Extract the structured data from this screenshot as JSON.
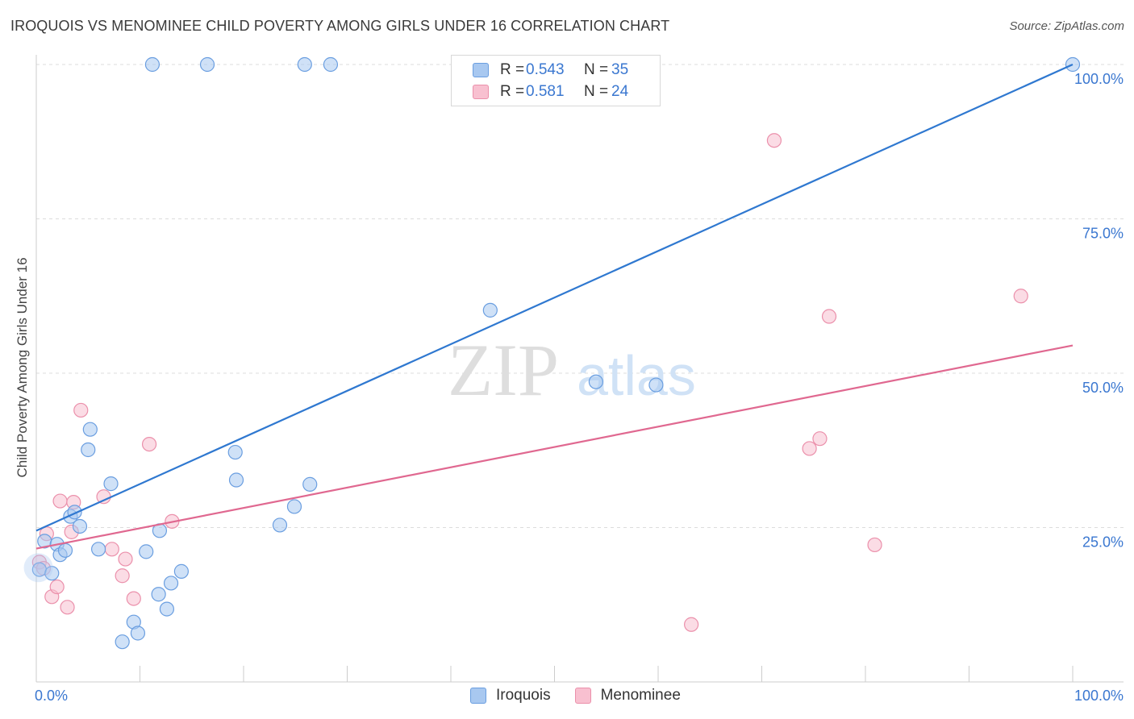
{
  "header": {
    "title": "IROQUOIS VS MENOMINEE CHILD POVERTY AMONG GIRLS UNDER 16 CORRELATION CHART",
    "source": "Source: ZipAtlas.com"
  },
  "watermark": {
    "zip": "ZIP",
    "atlas": "atlas"
  },
  "legend": {
    "rows": [
      {
        "r_label": "R =",
        "r_value": "0.543",
        "n_label": "N =",
        "n_value": "35"
      },
      {
        "r_label": "R =",
        "r_value": "0.581",
        "n_label": "N =",
        "n_value": "24"
      }
    ],
    "bottom": [
      "Iroquois",
      "Menominee"
    ]
  },
  "colors": {
    "iroquois_fill": "#a8c8f0",
    "iroquois_stroke": "#6a9ee0",
    "iroquois_line": "#2f78d0",
    "menominee_fill": "#f8c0d0",
    "menominee_stroke": "#eb90ab",
    "menominee_line": "#e06890",
    "tick_label": "#3a77d0"
  },
  "chart_data": {
    "type": "scatter",
    "title": "IROQUOIS VS MENOMINEE CHILD POVERTY AMONG GIRLS UNDER 16 CORRELATION CHART",
    "xlabel": "",
    "ylabel": "Child Poverty Among Girls Under 16",
    "xlim": [
      0,
      100
    ],
    "ylim": [
      0,
      100
    ],
    "x_tick_labels": [
      {
        "value": 0,
        "label": "0.0%"
      },
      {
        "value": 100,
        "label": "100.0%"
      }
    ],
    "y_tick_labels": [
      {
        "value": 25,
        "label": "25.0%"
      },
      {
        "value": 50,
        "label": "50.0%"
      },
      {
        "value": 75,
        "label": "75.0%"
      },
      {
        "value": 100,
        "label": "100.0%"
      }
    ],
    "grid": true,
    "series": [
      {
        "name": "Iroquois",
        "points": [
          [
            0.3,
            18.2
          ],
          [
            0.8,
            22.8
          ],
          [
            1.5,
            17.6
          ],
          [
            2.0,
            22.3
          ],
          [
            2.3,
            20.6
          ],
          [
            2.8,
            21.3
          ],
          [
            3.3,
            26.8
          ],
          [
            3.7,
            27.5
          ],
          [
            4.2,
            25.2
          ],
          [
            5.0,
            37.6
          ],
          [
            5.2,
            40.9
          ],
          [
            6.0,
            21.5
          ],
          [
            7.2,
            32.1
          ],
          [
            8.3,
            6.5
          ],
          [
            9.4,
            9.7
          ],
          [
            9.8,
            7.9
          ],
          [
            10.6,
            21.1
          ],
          [
            11.2,
            100
          ],
          [
            11.8,
            14.2
          ],
          [
            11.9,
            24.5
          ],
          [
            12.6,
            11.8
          ],
          [
            13.0,
            16.0
          ],
          [
            14.0,
            17.9
          ],
          [
            16.5,
            100
          ],
          [
            19.3,
            32.7
          ],
          [
            19.2,
            37.2
          ],
          [
            23.5,
            25.4
          ],
          [
            24.9,
            28.4
          ],
          [
            25.9,
            100
          ],
          [
            26.4,
            32.0
          ],
          [
            28.4,
            100
          ],
          [
            43.8,
            60.2
          ],
          [
            54.0,
            48.6
          ],
          [
            59.8,
            48.1
          ],
          [
            100,
            100
          ]
        ],
        "trend": {
          "x": [
            0,
            100
          ],
          "y": [
            24.5,
            100
          ]
        }
      },
      {
        "name": "Menominee",
        "points": [
          [
            0.3,
            19.4
          ],
          [
            0.7,
            18.4
          ],
          [
            1.0,
            24.0
          ],
          [
            1.5,
            13.8
          ],
          [
            2.0,
            15.4
          ],
          [
            2.3,
            29.3
          ],
          [
            3.0,
            12.1
          ],
          [
            3.4,
            24.3
          ],
          [
            3.6,
            29.1
          ],
          [
            4.3,
            44.0
          ],
          [
            6.5,
            30.0
          ],
          [
            7.3,
            21.5
          ],
          [
            8.3,
            17.2
          ],
          [
            8.6,
            19.9
          ],
          [
            9.4,
            13.5
          ],
          [
            10.9,
            38.5
          ],
          [
            13.1,
            26.0
          ],
          [
            63.2,
            9.3
          ],
          [
            71.2,
            87.7
          ],
          [
            74.6,
            37.8
          ],
          [
            75.6,
            39.4
          ],
          [
            76.5,
            59.2
          ],
          [
            80.9,
            22.2
          ],
          [
            95.0,
            62.5
          ]
        ],
        "trend": {
          "x": [
            0,
            100
          ],
          "y": [
            21.6,
            54.5
          ]
        }
      }
    ]
  }
}
